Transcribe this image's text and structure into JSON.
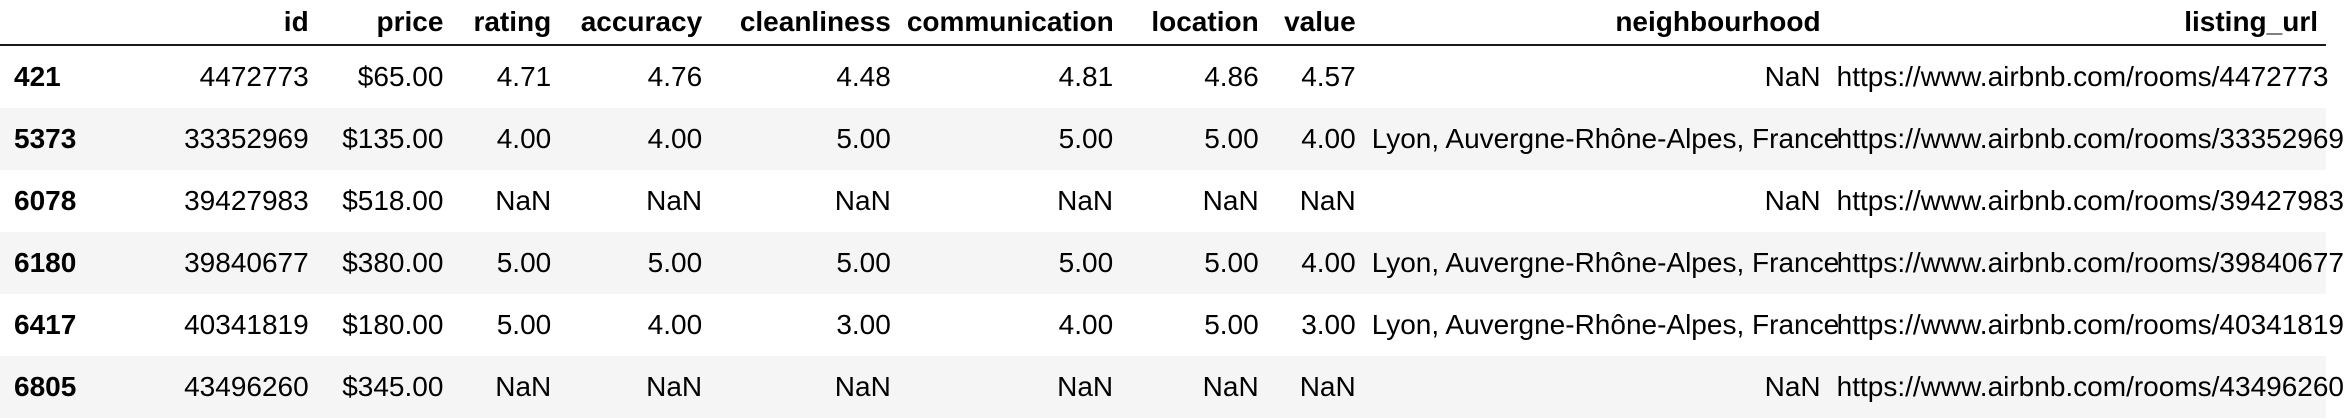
{
  "table": {
    "index_header": "",
    "columns": [
      "id",
      "price",
      "rating",
      "accuracy",
      "cleanliness",
      "communication",
      "location",
      "value",
      "neighbourhood",
      "listing_url"
    ],
    "rows": [
      {
        "index": "421",
        "cells": [
          "4472773",
          "$65.00",
          "4.71",
          "4.76",
          "4.48",
          "4.81",
          "4.86",
          "4.57",
          "NaN",
          "https://www.airbnb.com/rooms/4472773"
        ]
      },
      {
        "index": "5373",
        "cells": [
          "33352969",
          "$135.00",
          "4.00",
          "4.00",
          "5.00",
          "5.00",
          "5.00",
          "4.00",
          "Lyon, Auvergne-Rhône-Alpes, France",
          "https://www.airbnb.com/rooms/33352969"
        ]
      },
      {
        "index": "6078",
        "cells": [
          "39427983",
          "$518.00",
          "NaN",
          "NaN",
          "NaN",
          "NaN",
          "NaN",
          "NaN",
          "NaN",
          "https://www.airbnb.com/rooms/39427983"
        ]
      },
      {
        "index": "6180",
        "cells": [
          "39840677",
          "$380.00",
          "5.00",
          "5.00",
          "5.00",
          "5.00",
          "5.00",
          "4.00",
          "Lyon, Auvergne-Rhône-Alpes, France",
          "https://www.airbnb.com/rooms/39840677"
        ]
      },
      {
        "index": "6417",
        "cells": [
          "40341819",
          "$180.00",
          "5.00",
          "4.00",
          "3.00",
          "4.00",
          "5.00",
          "3.00",
          "Lyon, Auvergne-Rhône-Alpes, France",
          "https://www.airbnb.com/rooms/40341819"
        ]
      },
      {
        "index": "6805",
        "cells": [
          "43496260",
          "$345.00",
          "NaN",
          "NaN",
          "NaN",
          "NaN",
          "NaN",
          "NaN",
          "NaN",
          "https://www.airbnb.com/rooms/43496260"
        ]
      }
    ]
  },
  "colors": {
    "header_rule": "#1a1a1a",
    "stripe": "#f5f5f5",
    "background": "#ffffff",
    "text": "#000000"
  }
}
